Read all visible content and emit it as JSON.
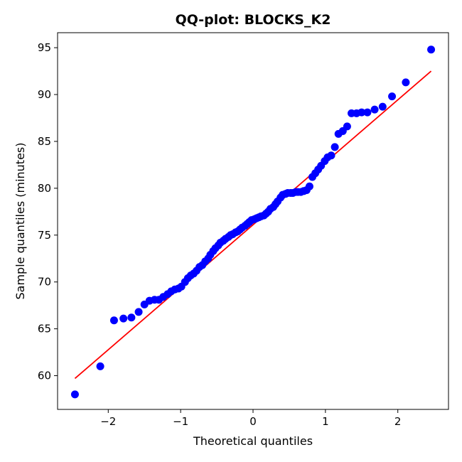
{
  "chart_data": {
    "type": "scatter",
    "title": "QQ-plot: BLOCKS_K2",
    "xlabel": "Theoretical quantiles",
    "ylabel": "Sample quantiles (minutes)",
    "xlim": [
      -2.7,
      2.7
    ],
    "ylim": [
      56.4,
      96.6
    ],
    "xticks": [
      "−2",
      "−1",
      "0",
      "1",
      "2"
    ],
    "yticks": [
      "60",
      "65",
      "70",
      "75",
      "80",
      "85",
      "90",
      "95"
    ],
    "grid": false,
    "colors": {
      "points": "#0000ff",
      "line": "#ff0000"
    },
    "reference_line": {
      "x": [
        -2.46,
        2.46
      ],
      "y": [
        59.7,
        92.5
      ]
    },
    "points": {
      "x": [
        -2.46,
        -2.11,
        -1.92,
        -1.79,
        -1.68,
        -1.58,
        -1.5,
        -1.43,
        -1.36,
        -1.3,
        -1.24,
        -1.18,
        -1.13,
        -1.08,
        -1.03,
        -0.99,
        -0.94,
        -0.9,
        -0.86,
        -0.82,
        -0.78,
        -0.74,
        -0.7,
        -0.66,
        -0.62,
        -0.59,
        -0.55,
        -0.52,
        -0.48,
        -0.45,
        -0.41,
        -0.38,
        -0.34,
        -0.31,
        -0.28,
        -0.24,
        -0.21,
        -0.18,
        -0.15,
        -0.11,
        -0.08,
        -0.05,
        -0.02,
        0.02,
        0.05,
        0.08,
        0.11,
        0.15,
        0.18,
        0.21,
        0.24,
        0.28,
        0.31,
        0.34,
        0.38,
        0.41,
        0.45,
        0.48,
        0.52,
        0.55,
        0.59,
        0.62,
        0.66,
        0.7,
        0.74,
        0.78,
        0.82,
        0.86,
        0.9,
        0.94,
        0.99,
        1.03,
        1.08,
        1.13,
        1.18,
        1.24,
        1.3,
        1.36,
        1.43,
        1.5,
        1.58,
        1.68,
        1.79,
        1.92,
        2.11,
        2.46
      ],
      "y": [
        58.0,
        61.0,
        65.9,
        66.1,
        66.2,
        66.8,
        67.6,
        68.0,
        68.1,
        68.1,
        68.4,
        68.7,
        69.0,
        69.2,
        69.3,
        69.5,
        70.0,
        70.4,
        70.7,
        70.9,
        71.2,
        71.6,
        71.8,
        72.2,
        72.5,
        72.9,
        73.3,
        73.6,
        73.9,
        74.2,
        74.4,
        74.6,
        74.8,
        75.0,
        75.1,
        75.3,
        75.4,
        75.6,
        75.8,
        76.0,
        76.2,
        76.4,
        76.6,
        76.7,
        76.8,
        76.9,
        77.0,
        77.1,
        77.3,
        77.5,
        77.8,
        78.0,
        78.3,
        78.6,
        79.0,
        79.3,
        79.4,
        79.5,
        79.5,
        79.5,
        79.6,
        79.6,
        79.6,
        79.7,
        79.8,
        80.2,
        81.2,
        81.6,
        82.0,
        82.4,
        82.9,
        83.3,
        83.5,
        84.4,
        85.8,
        86.1,
        86.6,
        88.0,
        88.0,
        88.1,
        88.1,
        88.4,
        88.7,
        89.8,
        91.3,
        94.8
      ]
    }
  }
}
